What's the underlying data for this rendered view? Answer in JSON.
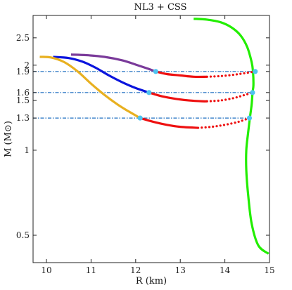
{
  "chart_data": {
    "type": "line",
    "title": "NL3 + CSS",
    "xlabel": "R (km)",
    "ylabel": "M (M⊙)",
    "xlim": [
      9.7,
      15.0
    ],
    "ylim": [
      0.4,
      3.0
    ],
    "y_scale": "log",
    "xticks": [
      10,
      11,
      12,
      13,
      14,
      15
    ],
    "yticks": [
      0.5,
      1,
      1.3,
      1.5,
      1.6,
      1.9,
      2,
      2.5
    ],
    "ytick_labels": [
      "0.5",
      "1",
      "1.3",
      "1.5",
      "1.6",
      "1.9",
      "2",
      "2.5"
    ],
    "grid": false,
    "hlines": [
      {
        "y": 1.9,
        "x_range": [
          9.7,
          14.68
        ],
        "color": "#1f6fc0",
        "style": "dash-dot"
      },
      {
        "y": 1.6,
        "x_range": [
          9.7,
          14.62
        ],
        "color": "#1f6fc0",
        "style": "dash-dot"
      },
      {
        "y": 1.3,
        "x_range": [
          9.7,
          14.55
        ],
        "color": "#1f6fc0",
        "style": "dash-dot"
      }
    ],
    "series": [
      {
        "color": "#22ee00",
        "style": "solid",
        "points": [
          [
            13.3,
            2.92
          ],
          [
            13.6,
            2.9
          ],
          [
            13.9,
            2.84
          ],
          [
            14.15,
            2.72
          ],
          [
            14.35,
            2.55
          ],
          [
            14.5,
            2.32
          ],
          [
            14.6,
            2.05
          ],
          [
            14.63,
            1.9
          ],
          [
            14.64,
            1.7
          ],
          [
            14.62,
            1.6
          ],
          [
            14.6,
            1.45
          ],
          [
            14.56,
            1.3
          ],
          [
            14.52,
            1.15
          ],
          [
            14.48,
            1.0
          ],
          [
            14.48,
            0.85
          ],
          [
            14.52,
            0.7
          ],
          [
            14.6,
            0.55
          ],
          [
            14.75,
            0.46
          ],
          [
            14.98,
            0.43
          ]
        ]
      },
      {
        "color": "#7a3a9a",
        "style": "solid",
        "points": [
          [
            10.55,
            2.18
          ],
          [
            10.9,
            2.17
          ],
          [
            11.3,
            2.14
          ],
          [
            11.7,
            2.08
          ],
          [
            12.0,
            2.01
          ],
          [
            12.25,
            1.95
          ],
          [
            12.45,
            1.9
          ]
        ]
      },
      {
        "color": "#0a14dd",
        "style": "solid",
        "points": [
          [
            10.15,
            2.14
          ],
          [
            10.5,
            2.12
          ],
          [
            10.8,
            2.06
          ],
          [
            11.1,
            1.96
          ],
          [
            11.4,
            1.84
          ],
          [
            11.7,
            1.74
          ],
          [
            12.0,
            1.66
          ],
          [
            12.3,
            1.6
          ]
        ]
      },
      {
        "color": "#e8b020",
        "style": "solid",
        "points": [
          [
            9.85,
            2.14
          ],
          [
            10.1,
            2.13
          ],
          [
            10.4,
            2.05
          ],
          [
            10.7,
            1.9
          ],
          [
            11.0,
            1.72
          ],
          [
            11.3,
            1.57
          ],
          [
            11.6,
            1.45
          ],
          [
            11.85,
            1.37
          ],
          [
            12.1,
            1.3
          ]
        ]
      },
      {
        "color": "#ee1010",
        "style": "solid",
        "points": [
          [
            12.45,
            1.9
          ],
          [
            12.7,
            1.86
          ],
          [
            13.0,
            1.84
          ],
          [
            13.3,
            1.82
          ],
          [
            13.6,
            1.82
          ]
        ]
      },
      {
        "color": "#ee1010",
        "style": "dotted",
        "points": [
          [
            13.6,
            1.82
          ],
          [
            13.9,
            1.83
          ],
          [
            14.2,
            1.85
          ],
          [
            14.5,
            1.88
          ],
          [
            14.68,
            1.9
          ]
        ]
      },
      {
        "color": "#ee1010",
        "style": "solid",
        "points": [
          [
            12.3,
            1.6
          ],
          [
            12.6,
            1.55
          ],
          [
            12.9,
            1.52
          ],
          [
            13.2,
            1.5
          ],
          [
            13.5,
            1.49
          ],
          [
            13.6,
            1.49
          ]
        ]
      },
      {
        "color": "#ee1010",
        "style": "dotted",
        "points": [
          [
            13.6,
            1.49
          ],
          [
            13.9,
            1.5
          ],
          [
            14.2,
            1.53
          ],
          [
            14.45,
            1.57
          ],
          [
            14.62,
            1.6
          ]
        ]
      },
      {
        "color": "#ee1010",
        "style": "solid",
        "points": [
          [
            12.1,
            1.3
          ],
          [
            12.4,
            1.26
          ],
          [
            12.7,
            1.23
          ],
          [
            13.0,
            1.21
          ],
          [
            13.4,
            1.2
          ]
        ]
      },
      {
        "color": "#ee1010",
        "style": "dotted",
        "points": [
          [
            13.4,
            1.2
          ],
          [
            13.7,
            1.21
          ],
          [
            14.0,
            1.23
          ],
          [
            14.3,
            1.26
          ],
          [
            14.55,
            1.3
          ]
        ]
      }
    ],
    "markers": [
      {
        "x": 12.45,
        "y": 1.9,
        "color": "#4fc3f0"
      },
      {
        "x": 14.68,
        "y": 1.9,
        "color": "#4fc3f0"
      },
      {
        "x": 12.3,
        "y": 1.6,
        "color": "#4fc3f0"
      },
      {
        "x": 14.62,
        "y": 1.6,
        "color": "#4fc3f0"
      },
      {
        "x": 12.1,
        "y": 1.3,
        "color": "#4fc3f0"
      },
      {
        "x": 14.55,
        "y": 1.3,
        "color": "#4fc3f0"
      }
    ]
  }
}
